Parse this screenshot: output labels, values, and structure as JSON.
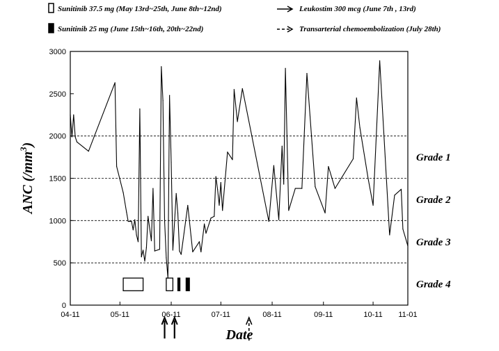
{
  "legend": [
    {
      "marker": "open-bar",
      "label": "Sunitinib 37.5 mg (May 13rd~25th, June 8th~12nd)"
    },
    {
      "marker": "filled-bar",
      "label": "Sunitinib 25 mg (June 15th~16th, 20th~22nd)"
    },
    {
      "marker": "solid-arrow",
      "label": "Leukostim 300 mcg (June 7th , 13rd)"
    },
    {
      "marker": "dashed-arrow",
      "label": "Transarterial chemoembolization (July 28th)"
    }
  ],
  "chart_data": {
    "type": "line",
    "title": "",
    "xlabel": "Date",
    "ylabel": "ANC (/mm3)",
    "ylabel_parts": {
      "main": "ANC (/mm",
      "sup": "3",
      "tail": ")"
    },
    "xlim": [
      "2011-04-11",
      "2011-11-01"
    ],
    "ylim": [
      0,
      3000
    ],
    "xticks": [
      "04-11",
      "05-11",
      "06-11",
      "07-11",
      "08-11",
      "09-11",
      "10-11",
      "11-01"
    ],
    "xtick_dates": [
      "2011-04-11",
      "2011-05-11",
      "2011-06-11",
      "2011-07-11",
      "2011-08-11",
      "2011-09-11",
      "2011-10-11",
      "2011-11-01"
    ],
    "yticks": [
      0,
      500,
      1000,
      1500,
      2000,
      2500,
      3000
    ],
    "gridlines_y": [
      500,
      1000,
      1500,
      2000
    ],
    "grades": [
      {
        "label": "Grade 1",
        "y": 1750
      },
      {
        "label": "Grade 2",
        "y": 1250
      },
      {
        "label": "Grade 3",
        "y": 750
      },
      {
        "label": "Grade 4",
        "y": 250
      }
    ],
    "series": [
      {
        "name": "",
        "points": [
          [
            "2011-04-11",
            2250
          ],
          [
            "2011-04-12",
            1990
          ],
          [
            "2011-04-13",
            2250
          ],
          [
            "2011-04-14",
            1990
          ],
          [
            "2011-04-15",
            1930
          ],
          [
            "2011-04-22",
            1820
          ],
          [
            "2011-05-08",
            2630
          ],
          [
            "2011-05-09",
            1640
          ],
          [
            "2011-05-13",
            1330
          ],
          [
            "2011-05-15",
            1100
          ],
          [
            "2011-05-16",
            990
          ],
          [
            "2011-05-18",
            990
          ],
          [
            "2011-05-19",
            890
          ],
          [
            "2011-05-20",
            1010
          ],
          [
            "2011-05-21",
            830
          ],
          [
            "2011-05-22",
            750
          ],
          [
            "2011-05-23",
            2320
          ],
          [
            "2011-05-24",
            570
          ],
          [
            "2011-05-25",
            650
          ],
          [
            "2011-05-26",
            520
          ],
          [
            "2011-05-27",
            680
          ],
          [
            "2011-05-28",
            1050
          ],
          [
            "2011-05-30",
            760
          ],
          [
            "2011-05-31",
            1380
          ],
          [
            "2011-06-01",
            640
          ],
          [
            "2011-06-04",
            660
          ],
          [
            "2011-06-05",
            2820
          ],
          [
            "2011-06-06",
            2420
          ],
          [
            "2011-06-07",
            1000
          ],
          [
            "2011-06-08",
            560
          ],
          [
            "2011-06-09",
            320
          ],
          [
            "2011-06-10",
            2480
          ],
          [
            "2011-06-11",
            1690
          ],
          [
            "2011-06-12",
            650
          ],
          [
            "2011-06-14",
            1320
          ],
          [
            "2011-06-15",
            1090
          ],
          [
            "2011-06-16",
            640
          ],
          [
            "2011-06-17",
            600
          ],
          [
            "2011-06-21",
            1180
          ],
          [
            "2011-06-24",
            630
          ],
          [
            "2011-06-28",
            750
          ],
          [
            "2011-06-29",
            630
          ],
          [
            "2011-07-01",
            960
          ],
          [
            "2011-07-02",
            850
          ],
          [
            "2011-07-05",
            1030
          ],
          [
            "2011-07-07",
            1050
          ],
          [
            "2011-07-08",
            1520
          ],
          [
            "2011-07-09",
            1370
          ],
          [
            "2011-07-10",
            1180
          ],
          [
            "2011-07-11",
            1450
          ],
          [
            "2011-07-12",
            1120
          ],
          [
            "2011-07-15",
            1810
          ],
          [
            "2011-07-18",
            1720
          ],
          [
            "2011-07-19",
            2550
          ],
          [
            "2011-07-21",
            2170
          ],
          [
            "2011-07-24",
            2560
          ],
          [
            "2011-08-09",
            990
          ],
          [
            "2011-08-12",
            1650
          ],
          [
            "2011-08-15",
            1010
          ],
          [
            "2011-08-17",
            1880
          ],
          [
            "2011-08-18",
            1430
          ],
          [
            "2011-08-19",
            2800
          ],
          [
            "2011-08-21",
            1120
          ],
          [
            "2011-08-25",
            1380
          ],
          [
            "2011-08-29",
            1380
          ],
          [
            "2011-09-01",
            2740
          ],
          [
            "2011-09-06",
            1400
          ],
          [
            "2011-09-12",
            1090
          ],
          [
            "2011-09-14",
            1640
          ],
          [
            "2011-09-18",
            1380
          ],
          [
            "2011-09-29",
            1730
          ],
          [
            "2011-10-01",
            2450
          ],
          [
            "2011-10-03",
            2100
          ],
          [
            "2011-10-08",
            1500
          ],
          [
            "2011-10-11",
            1180
          ],
          [
            "2011-10-15",
            2890
          ],
          [
            "2011-10-21",
            830
          ],
          [
            "2011-10-24",
            1300
          ],
          [
            "2011-10-28",
            1370
          ],
          [
            "2011-10-29",
            900
          ],
          [
            "2011-11-01",
            700
          ]
        ]
      }
    ],
    "treatment_bars": [
      {
        "kind": "open",
        "label": "Sunitinib 37.5 mg",
        "start": "2011-05-13",
        "end": "2011-05-25",
        "y": [
          170,
          320
        ]
      },
      {
        "kind": "open",
        "label": "Sunitinib 37.5 mg",
        "start": "2011-06-08",
        "end": "2011-06-12",
        "y": [
          170,
          320
        ]
      },
      {
        "kind": "filled",
        "label": "Sunitinib 25 mg",
        "start": "2011-06-15",
        "end": "2011-06-16",
        "y": [
          170,
          320
        ]
      },
      {
        "kind": "filled",
        "label": "Sunitinib 25 mg",
        "start": "2011-06-20",
        "end": "2011-06-22",
        "y": [
          170,
          320
        ]
      }
    ],
    "event_arrows": [
      {
        "kind": "solid",
        "label": "Leukostim 300 mcg",
        "date": "2011-06-07"
      },
      {
        "kind": "solid",
        "label": "Leukostim 300 mcg",
        "date": "2011-06-13"
      },
      {
        "kind": "dashed",
        "label": "Transarterial chemoembolization",
        "date": "2011-07-28"
      }
    ],
    "grid": "y-dashed",
    "legend_position": "top"
  }
}
